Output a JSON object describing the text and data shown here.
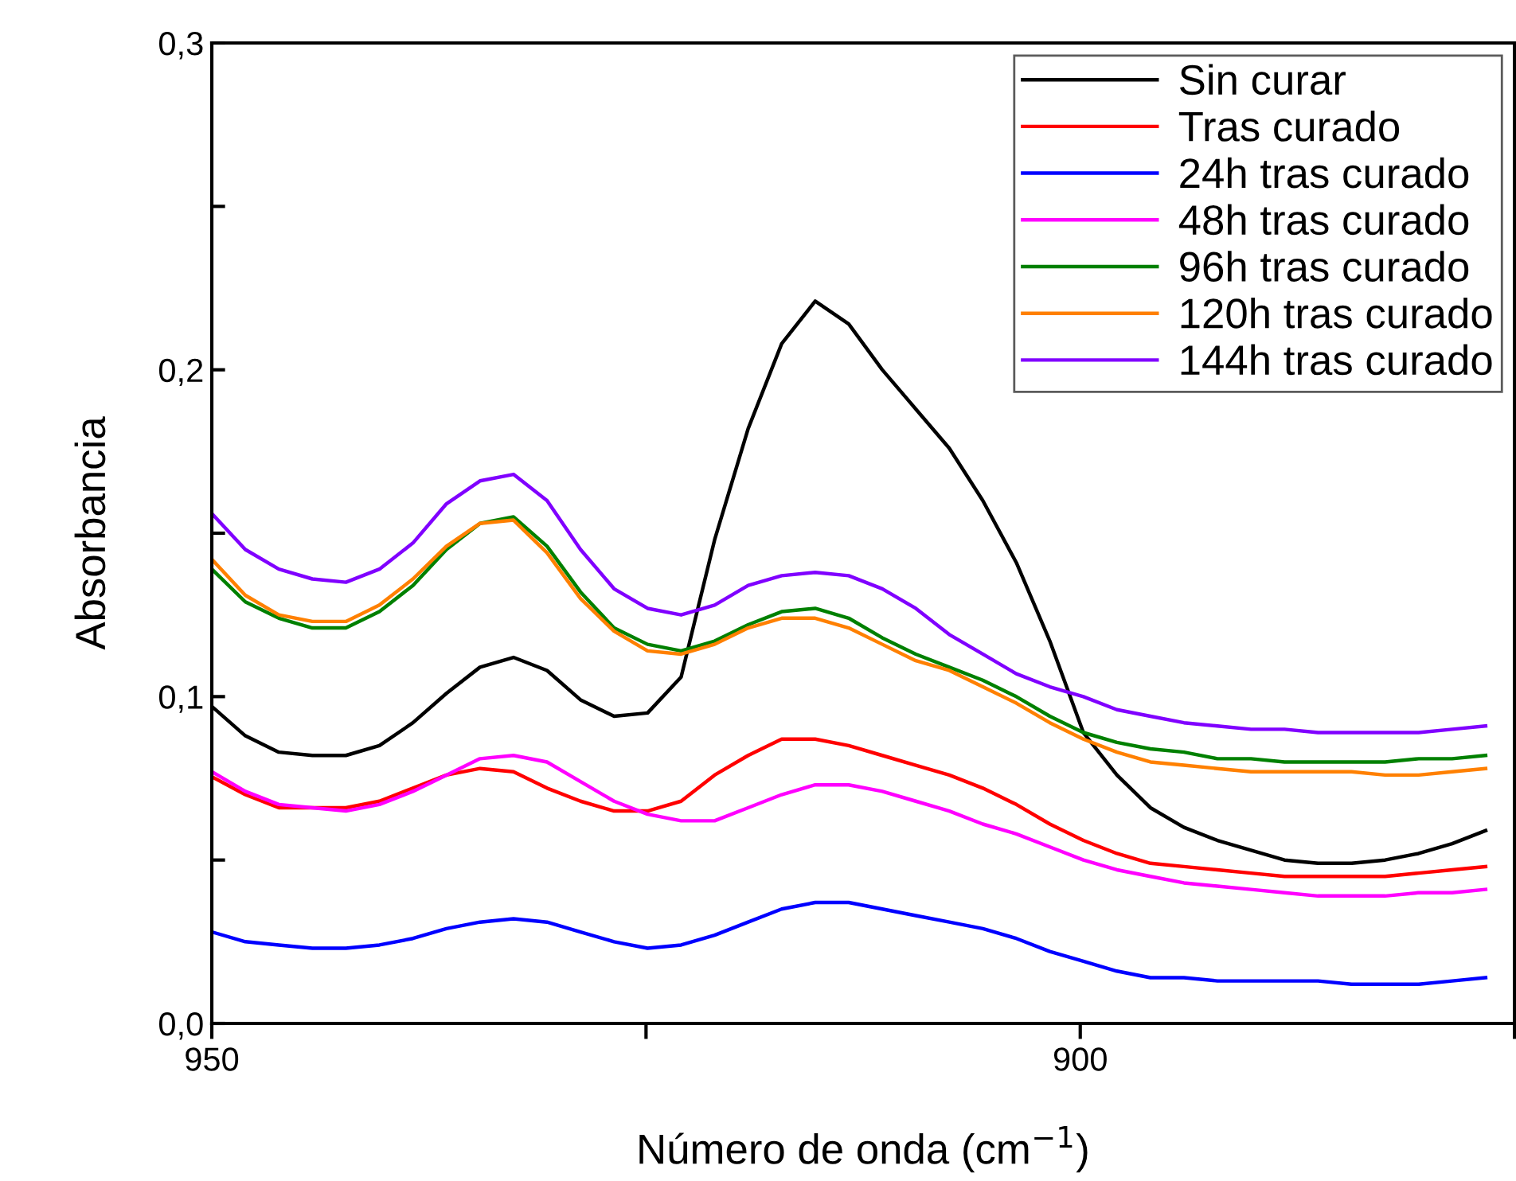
{
  "chart_data": {
    "type": "line",
    "xlabel": "Número de onda (cm$^{−1}$)",
    "ylabel": "Absorbancia",
    "x": [
      950.0,
      948.07,
      946.14,
      944.21,
      942.28,
      940.35,
      938.42,
      936.49,
      934.56,
      932.63,
      930.7,
      928.77,
      926.84,
      924.91,
      922.98,
      921.05,
      919.12,
      917.19,
      915.26,
      913.33,
      911.4,
      909.47,
      907.54,
      905.61,
      903.68,
      901.75,
      899.82,
      897.89,
      895.96,
      894.03,
      892.1,
      890.17,
      888.24,
      886.31,
      884.38,
      882.45,
      880.52,
      878.59,
      876.66
    ],
    "series": [
      {
        "name": "Sin curar",
        "color": "#000000",
        "values": [
          0.097,
          0.088,
          0.083,
          0.082,
          0.082,
          0.085,
          0.092,
          0.101,
          0.109,
          0.112,
          0.108,
          0.099,
          0.094,
          0.095,
          0.106,
          0.148,
          0.182,
          0.208,
          0.221,
          0.214,
          0.2,
          0.188,
          0.176,
          0.16,
          0.141,
          0.117,
          0.089,
          0.076,
          0.066,
          0.06,
          0.056,
          0.053,
          0.05,
          0.049,
          0.049,
          0.05,
          0.052,
          0.055,
          0.059
        ]
      },
      {
        "name": "Tras curado",
        "color": "#ff0000",
        "values": [
          0.0755,
          0.07,
          0.066,
          0.066,
          0.066,
          0.068,
          0.072,
          0.076,
          0.078,
          0.077,
          0.072,
          0.068,
          0.065,
          0.065,
          0.068,
          0.076,
          0.082,
          0.087,
          0.087,
          0.085,
          0.082,
          0.079,
          0.076,
          0.072,
          0.067,
          0.061,
          0.056,
          0.052,
          0.049,
          0.048,
          0.047,
          0.046,
          0.045,
          0.045,
          0.045,
          0.045,
          0.046,
          0.047,
          0.048
        ]
      },
      {
        "name": "24h tras curado",
        "color": "#0000ff",
        "values": [
          0.028,
          0.025,
          0.024,
          0.023,
          0.023,
          0.024,
          0.026,
          0.029,
          0.031,
          0.032,
          0.031,
          0.028,
          0.025,
          0.023,
          0.024,
          0.027,
          0.031,
          0.035,
          0.037,
          0.037,
          0.035,
          0.033,
          0.031,
          0.029,
          0.026,
          0.022,
          0.019,
          0.016,
          0.014,
          0.014,
          0.013,
          0.013,
          0.013,
          0.013,
          0.012,
          0.012,
          0.012,
          0.013,
          0.014
        ]
      },
      {
        "name": "48h tras curado",
        "color": "#ff00ff",
        "values": [
          0.077,
          0.071,
          0.067,
          0.066,
          0.065,
          0.067,
          0.071,
          0.076,
          0.081,
          0.082,
          0.08,
          0.074,
          0.068,
          0.064,
          0.062,
          0.062,
          0.066,
          0.07,
          0.073,
          0.073,
          0.071,
          0.068,
          0.065,
          0.061,
          0.058,
          0.054,
          0.05,
          0.047,
          0.045,
          0.043,
          0.042,
          0.041,
          0.04,
          0.039,
          0.039,
          0.039,
          0.04,
          0.04,
          0.041
        ]
      },
      {
        "name": "96h tras curado",
        "color": "#008000",
        "values": [
          0.139,
          0.129,
          0.124,
          0.121,
          0.121,
          0.126,
          0.134,
          0.145,
          0.153,
          0.155,
          0.146,
          0.132,
          0.121,
          0.116,
          0.114,
          0.117,
          0.122,
          0.126,
          0.127,
          0.124,
          0.118,
          0.113,
          0.109,
          0.105,
          0.1,
          0.094,
          0.089,
          0.086,
          0.084,
          0.083,
          0.081,
          0.081,
          0.08,
          0.08,
          0.08,
          0.08,
          0.081,
          0.081,
          0.082
        ]
      },
      {
        "name": "120h tras curado",
        "color": "#ff8000",
        "values": [
          0.142,
          0.131,
          0.125,
          0.123,
          0.123,
          0.128,
          0.136,
          0.146,
          0.153,
          0.154,
          0.144,
          0.13,
          0.12,
          0.114,
          0.113,
          0.116,
          0.121,
          0.124,
          0.124,
          0.121,
          0.116,
          0.111,
          0.108,
          0.103,
          0.098,
          0.092,
          0.087,
          0.083,
          0.08,
          0.079,
          0.078,
          0.077,
          0.077,
          0.077,
          0.077,
          0.076,
          0.076,
          0.077,
          0.078
        ]
      },
      {
        "name": "144h tras curado",
        "color": "#8000ff",
        "values": [
          0.156,
          0.145,
          0.139,
          0.136,
          0.135,
          0.139,
          0.147,
          0.159,
          0.166,
          0.168,
          0.16,
          0.145,
          0.133,
          0.127,
          0.125,
          0.128,
          0.134,
          0.137,
          0.138,
          0.137,
          0.133,
          0.127,
          0.119,
          0.113,
          0.107,
          0.103,
          0.1,
          0.096,
          0.094,
          0.092,
          0.091,
          0.09,
          0.09,
          0.089,
          0.089,
          0.089,
          0.089,
          0.09,
          0.091
        ]
      }
    ],
    "xlim": [
      950,
      875
    ],
    "xticks": [
      950,
      {
        "value": 925,
        "label": null
      },
      900,
      {
        "value": 875,
        "label": null
      }
    ],
    "ylim": [
      0,
      0.3
    ],
    "yticks": [
      {
        "value": 0,
        "label": "0,0"
      },
      {
        "value": 0.05,
        "label": null
      },
      {
        "value": 0.1,
        "label": "0,1"
      },
      {
        "value": 0.15,
        "label": null
      },
      {
        "value": 0.2,
        "label": "0,2"
      },
      {
        "value": 0.25,
        "label": null
      },
      {
        "value": 0.3,
        "label": "0,3"
      }
    ],
    "grid": false,
    "legend": "top right",
    "marker": "none",
    "line_style": "solid"
  }
}
